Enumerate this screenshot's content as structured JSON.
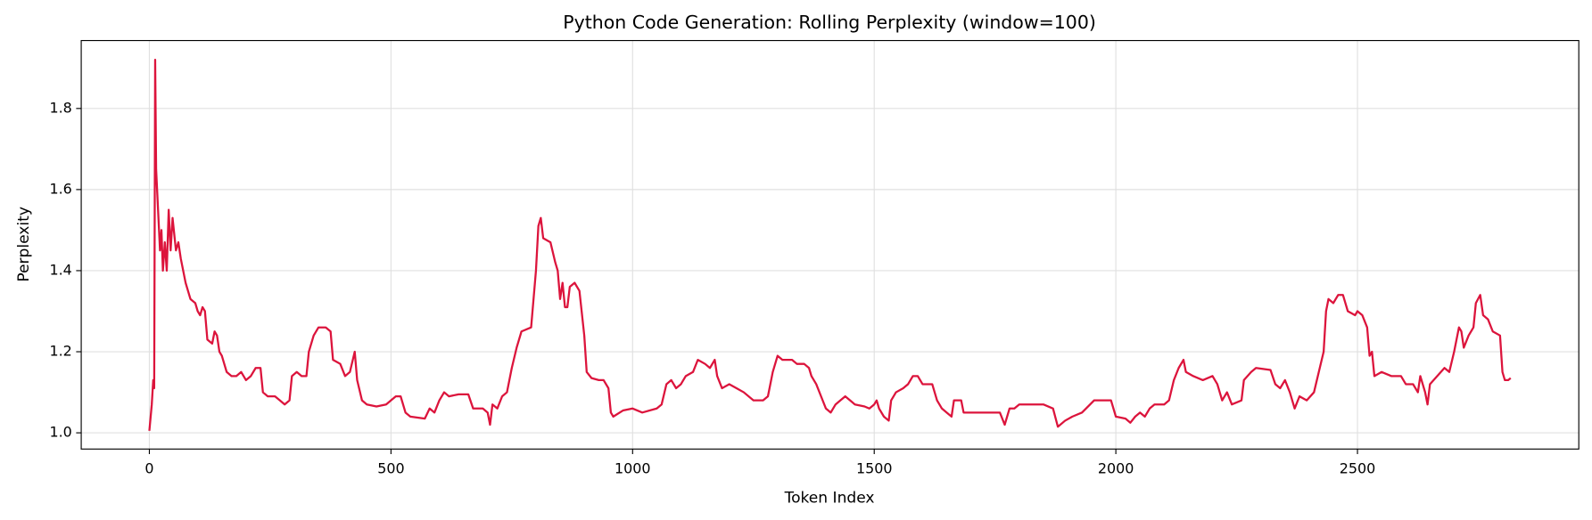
{
  "chart_data": {
    "type": "line",
    "title": "Python Code Generation: Rolling Perplexity (window=100)",
    "x_label": "Token Index",
    "y_label": "Perplexity",
    "color": "#dc143c",
    "grid": true,
    "xlim": [
      -141,
      2958
    ],
    "ylim": [
      0.96,
      1.9675
    ],
    "xticks": [
      0,
      500,
      1000,
      1500,
      2000,
      2500
    ],
    "yticks": [
      {
        "value": 1.0,
        "label": "1.0"
      },
      {
        "value": 1.2,
        "label": "1.2"
      },
      {
        "value": 1.4,
        "label": "1.4"
      },
      {
        "value": 1.6,
        "label": "1.6"
      },
      {
        "value": 1.8,
        "label": "1.8"
      }
    ],
    "x": [
      0,
      5,
      8,
      10,
      12,
      14,
      18,
      22,
      25,
      28,
      32,
      36,
      40,
      44,
      48,
      55,
      60,
      65,
      75,
      85,
      95,
      100,
      105,
      110,
      115,
      120,
      130,
      135,
      140,
      145,
      150,
      160,
      170,
      180,
      190,
      200,
      210,
      220,
      230,
      235,
      245,
      260,
      270,
      280,
      290,
      295,
      305,
      315,
      325,
      330,
      340,
      350,
      365,
      375,
      380,
      395,
      405,
      415,
      425,
      430,
      440,
      450,
      470,
      490,
      500,
      510,
      520,
      530,
      540,
      570,
      580,
      590,
      600,
      610,
      620,
      640,
      660,
      670,
      690,
      700,
      705,
      710,
      720,
      730,
      740,
      750,
      760,
      770,
      790,
      800,
      805,
      810,
      815,
      830,
      840,
      845,
      850,
      855,
      860,
      865,
      870,
      880,
      890,
      900,
      905,
      915,
      930,
      940,
      950,
      955,
      960,
      980,
      1000,
      1020,
      1050,
      1060,
      1070,
      1080,
      1090,
      1100,
      1110,
      1125,
      1135,
      1150,
      1160,
      1170,
      1175,
      1185,
      1200,
      1215,
      1230,
      1250,
      1270,
      1280,
      1290,
      1300,
      1310,
      1330,
      1340,
      1355,
      1365,
      1370,
      1380,
      1390,
      1400,
      1410,
      1420,
      1430,
      1440,
      1450,
      1460,
      1480,
      1490,
      1500,
      1505,
      1510,
      1520,
      1530,
      1535,
      1545,
      1560,
      1570,
      1580,
      1590,
      1600,
      1620,
      1630,
      1640,
      1650,
      1660,
      1665,
      1680,
      1685,
      1700,
      1760,
      1770,
      1780,
      1790,
      1800,
      1850,
      1870,
      1880,
      1895,
      1910,
      1930,
      1955,
      1990,
      2000,
      2020,
      2030,
      2040,
      2050,
      2060,
      2070,
      2080,
      2100,
      2110,
      2120,
      2130,
      2140,
      2145,
      2160,
      2180,
      2200,
      2210,
      2220,
      2230,
      2240,
      2260,
      2265,
      2280,
      2290,
      2320,
      2330,
      2340,
      2350,
      2360,
      2370,
      2380,
      2395,
      2410,
      2420,
      2430,
      2435,
      2440,
      2450,
      2460,
      2470,
      2480,
      2495,
      2500,
      2510,
      2520,
      2525,
      2530,
      2535,
      2550,
      2570,
      2590,
      2600,
      2615,
      2625,
      2630,
      2640,
      2645,
      2650,
      2665,
      2680,
      2690,
      2700,
      2710,
      2715,
      2720,
      2730,
      2740,
      2745,
      2754,
      2760,
      2770,
      2780,
      2795,
      2800,
      2805,
      2812,
      2817
    ],
    "values": [
      1.005,
      1.07,
      1.13,
      1.11,
      1.92,
      1.65,
      1.55,
      1.45,
      1.5,
      1.4,
      1.47,
      1.4,
      1.55,
      1.45,
      1.53,
      1.45,
      1.47,
      1.43,
      1.37,
      1.33,
      1.32,
      1.3,
      1.29,
      1.31,
      1.3,
      1.23,
      1.22,
      1.25,
      1.24,
      1.2,
      1.19,
      1.15,
      1.14,
      1.14,
      1.15,
      1.13,
      1.14,
      1.16,
      1.16,
      1.1,
      1.09,
      1.09,
      1.08,
      1.07,
      1.08,
      1.14,
      1.15,
      1.14,
      1.14,
      1.2,
      1.24,
      1.26,
      1.26,
      1.25,
      1.18,
      1.17,
      1.14,
      1.15,
      1.2,
      1.13,
      1.08,
      1.07,
      1.065,
      1.07,
      1.08,
      1.09,
      1.09,
      1.05,
      1.04,
      1.035,
      1.06,
      1.05,
      1.08,
      1.1,
      1.09,
      1.095,
      1.095,
      1.06,
      1.06,
      1.05,
      1.02,
      1.07,
      1.06,
      1.09,
      1.1,
      1.16,
      1.21,
      1.25,
      1.26,
      1.4,
      1.51,
      1.53,
      1.48,
      1.47,
      1.42,
      1.4,
      1.33,
      1.37,
      1.31,
      1.31,
      1.36,
      1.37,
      1.35,
      1.24,
      1.15,
      1.135,
      1.13,
      1.13,
      1.11,
      1.05,
      1.04,
      1.055,
      1.06,
      1.05,
      1.06,
      1.07,
      1.12,
      1.13,
      1.11,
      1.12,
      1.14,
      1.15,
      1.18,
      1.17,
      1.16,
      1.18,
      1.14,
      1.11,
      1.12,
      1.11,
      1.1,
      1.08,
      1.08,
      1.09,
      1.15,
      1.19,
      1.18,
      1.18,
      1.17,
      1.17,
      1.16,
      1.14,
      1.12,
      1.09,
      1.06,
      1.05,
      1.07,
      1.08,
      1.09,
      1.08,
      1.07,
      1.065,
      1.06,
      1.07,
      1.08,
      1.06,
      1.04,
      1.03,
      1.08,
      1.1,
      1.11,
      1.12,
      1.14,
      1.14,
      1.12,
      1.12,
      1.08,
      1.06,
      1.05,
      1.04,
      1.08,
      1.08,
      1.05,
      1.05,
      1.05,
      1.02,
      1.06,
      1.06,
      1.07,
      1.07,
      1.06,
      1.015,
      1.03,
      1.04,
      1.05,
      1.08,
      1.08,
      1.04,
      1.035,
      1.025,
      1.04,
      1.05,
      1.04,
      1.06,
      1.07,
      1.07,
      1.08,
      1.13,
      1.16,
      1.18,
      1.15,
      1.14,
      1.13,
      1.14,
      1.12,
      1.08,
      1.1,
      1.07,
      1.08,
      1.13,
      1.15,
      1.16,
      1.155,
      1.12,
      1.11,
      1.13,
      1.1,
      1.06,
      1.09,
      1.08,
      1.1,
      1.15,
      1.2,
      1.3,
      1.33,
      1.32,
      1.34,
      1.34,
      1.3,
      1.29,
      1.3,
      1.29,
      1.26,
      1.19,
      1.2,
      1.14,
      1.15,
      1.14,
      1.14,
      1.12,
      1.12,
      1.1,
      1.14,
      1.1,
      1.07,
      1.12,
      1.14,
      1.16,
      1.15,
      1.2,
      1.26,
      1.25,
      1.21,
      1.24,
      1.26,
      1.32,
      1.34,
      1.29,
      1.28,
      1.25,
      1.24,
      1.15,
      1.13,
      1.13,
      1.135
    ]
  }
}
